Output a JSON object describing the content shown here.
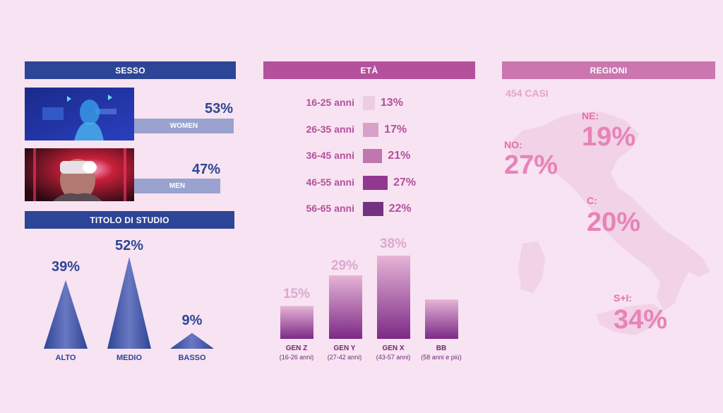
{
  "sesso": {
    "header": "SESSO",
    "items": [
      {
        "label": "WOMEN",
        "pct": "53%",
        "value": 53
      },
      {
        "label": "MEN",
        "pct": "47%",
        "value": 47
      }
    ]
  },
  "studio": {
    "header": "TITOLO DI STUDIO",
    "items": [
      {
        "label": "ALTO",
        "pct": "39%",
        "value": 39
      },
      {
        "label": "MEDIO",
        "pct": "52%",
        "value": 52
      },
      {
        "label": "BASSO",
        "pct": "9%",
        "value": 9
      }
    ]
  },
  "eta": {
    "header": "ETÀ",
    "items": [
      {
        "label": "16-25 anni",
        "pct": "13%",
        "value": 13,
        "color": "#eccde3"
      },
      {
        "label": "26-35 anni",
        "pct": "17%",
        "value": 17,
        "color": "#d9a1c9"
      },
      {
        "label": "36-45 anni",
        "pct": "21%",
        "value": 21,
        "color": "#c077b1"
      },
      {
        "label": "46-55 anni",
        "pct": "27%",
        "value": 27,
        "color": "#93378f"
      },
      {
        "label": "56-65 anni",
        "pct": "22%",
        "value": 22,
        "color": "#743181"
      }
    ]
  },
  "generazioni": {
    "items": [
      {
        "label": "GEN Z",
        "sub": "(16-26 anni)",
        "pct": "15%",
        "value": 15
      },
      {
        "label": "GEN Y",
        "sub": "(27-42 anni)",
        "pct": "29%",
        "value": 29
      },
      {
        "label": "GEN X",
        "sub": "(43-57 anni)",
        "pct": "38%",
        "value": 38
      },
      {
        "label": "BB",
        "sub": "(58 anni e più)",
        "pct": "",
        "value": 18
      }
    ]
  },
  "regioni": {
    "header": "REGIONI",
    "casi": "454 CASI",
    "items": [
      {
        "label": "NO:",
        "pct": "27%",
        "value": 27
      },
      {
        "label": "NE:",
        "pct": "19%",
        "value": 19
      },
      {
        "label": "C:",
        "pct": "20%",
        "value": 20
      },
      {
        "label": "S+I:",
        "pct": "34%",
        "value": 34
      }
    ]
  },
  "chart_data": [
    {
      "type": "bar",
      "title": "SESSO",
      "categories": [
        "WOMEN",
        "MEN"
      ],
      "values": [
        53,
        47
      ]
    },
    {
      "type": "bar",
      "title": "TITOLO DI STUDIO",
      "categories": [
        "ALTO",
        "MEDIO",
        "BASSO"
      ],
      "values": [
        39,
        52,
        9
      ]
    },
    {
      "type": "bar",
      "title": "ETÀ",
      "categories": [
        "16-25 anni",
        "26-35 anni",
        "36-45 anni",
        "46-55 anni",
        "56-65 anni"
      ],
      "values": [
        13,
        17,
        21,
        27,
        22
      ]
    },
    {
      "type": "bar",
      "categories": [
        "GEN Z",
        "GEN Y",
        "GEN X",
        "BB"
      ],
      "values": [
        15,
        29,
        38,
        18
      ]
    },
    {
      "type": "table",
      "title": "REGIONI",
      "categories": [
        "NO",
        "NE",
        "C",
        "S+I"
      ],
      "values": [
        27,
        19,
        20,
        34
      ]
    }
  ]
}
